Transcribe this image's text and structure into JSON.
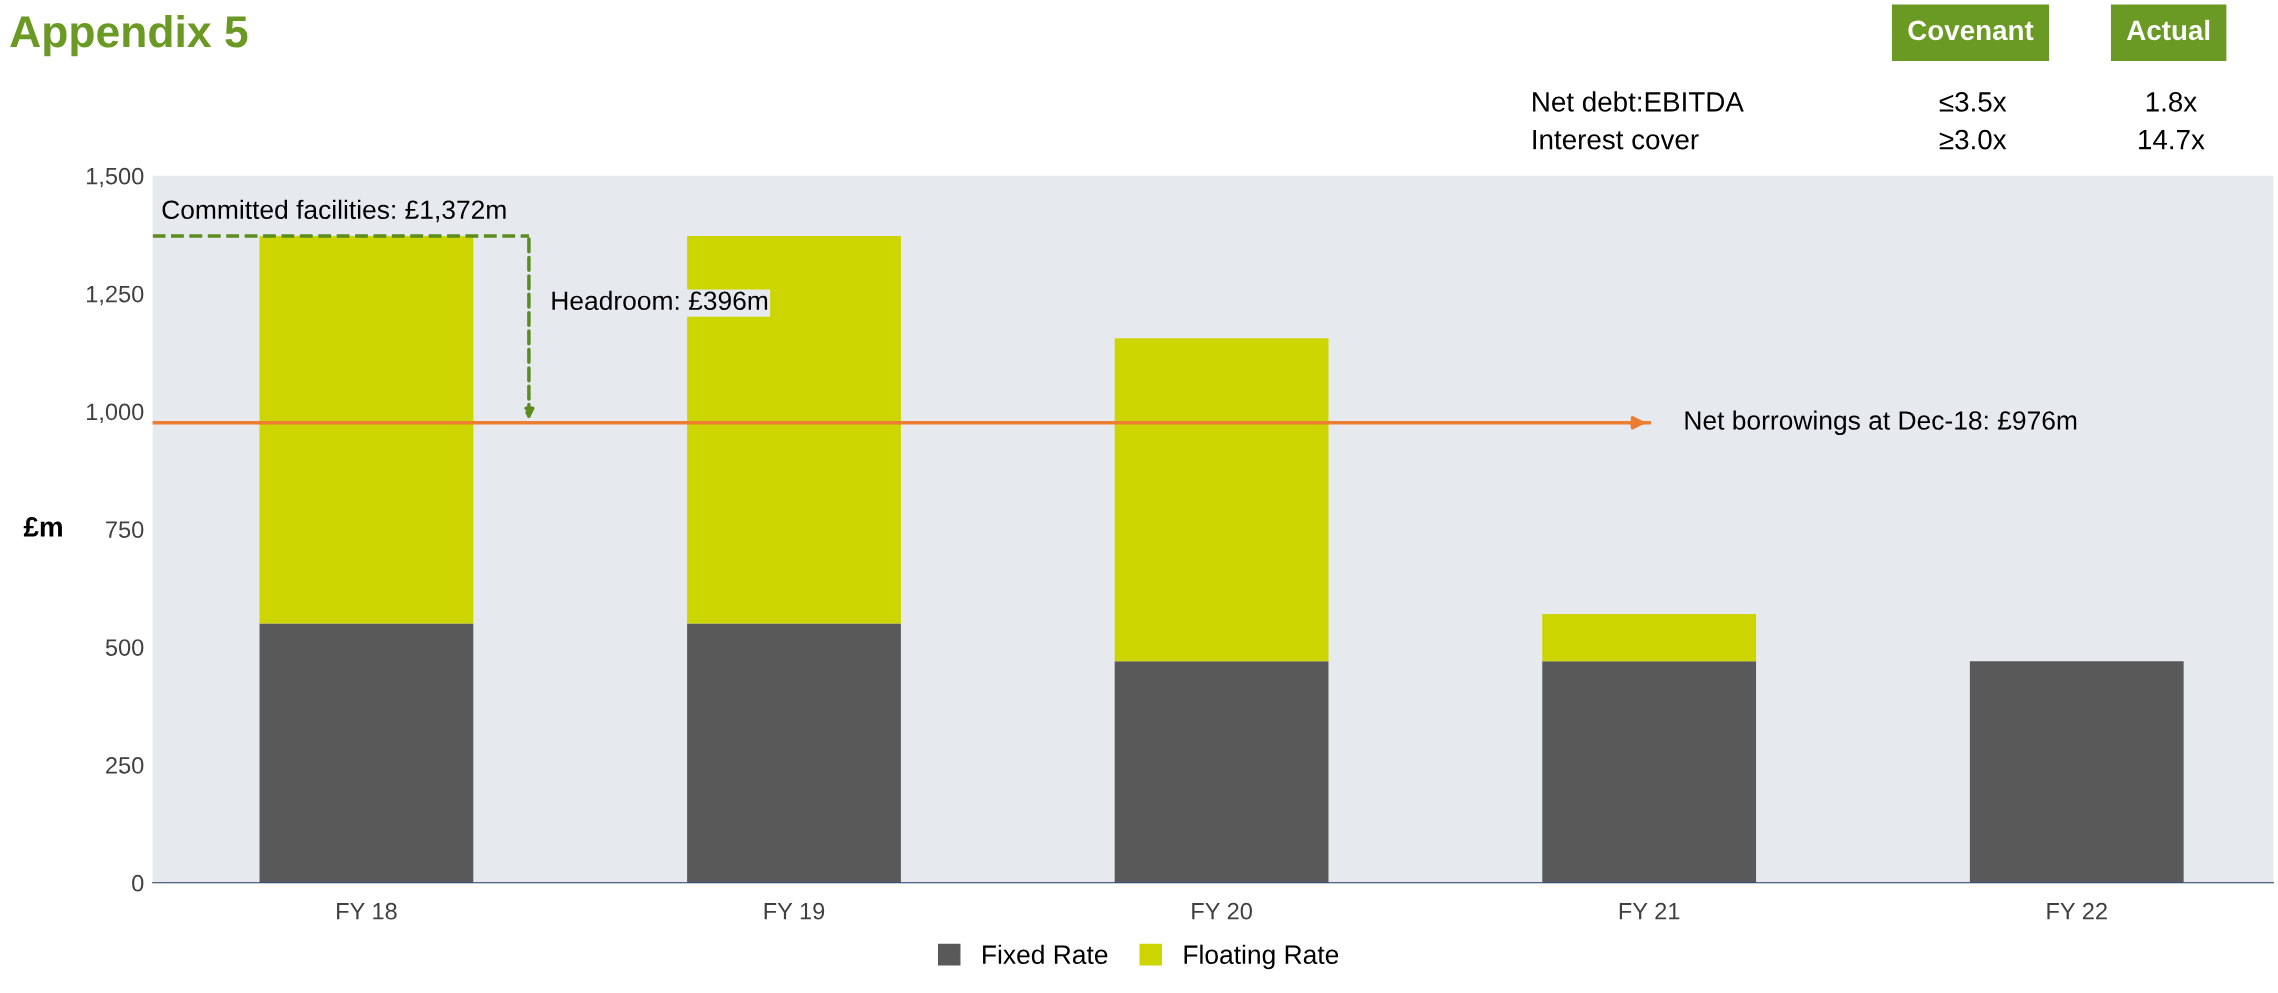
{
  "chart_data": {
    "type": "bar",
    "title": "Appendix 5",
    "ylabel": "£m",
    "stacked": true,
    "categories": [
      "FY 18",
      "FY 19",
      "FY 20",
      "FY 21",
      "FY 22"
    ],
    "series": [
      {
        "name": "Fixed Rate",
        "color": "#595959",
        "values": [
          550,
          550,
          470,
          470,
          470
        ]
      },
      {
        "name": "Floating Rate",
        "color": "#cdd500",
        "values": [
          822,
          822,
          685,
          100,
          0
        ]
      }
    ],
    "ylim": [
      0,
      1500
    ],
    "yticks": [
      0,
      {
        "value": 250,
        "label": "250"
      },
      {
        "value": 500,
        "label": "500"
      },
      {
        "value": 750,
        "label": "750"
      },
      {
        "value": 1000,
        "label": "1,000"
      },
      {
        "value": 1250,
        "label": "1,250"
      },
      {
        "value": 1500,
        "label": "1,500"
      }
    ],
    "ref_lines": [
      {
        "axis": "y",
        "value": 976,
        "label": "Net borrowings at Dec-18: £976m",
        "color": "#ed7d31"
      },
      {
        "axis": "y",
        "value": 1372,
        "label": "Committed facilities: £1,372m",
        "color": "#5b8c1e",
        "line_style": "dashed"
      }
    ],
    "annotations": [
      "Covenant",
      "Actual",
      "Net debt:EBITDA",
      "≤3.5x",
      "1.8x",
      "Interest cover",
      "≥3.0x",
      "14.7x",
      "Headroom: £396m"
    ],
    "grid": false,
    "legend": "bottom"
  }
}
